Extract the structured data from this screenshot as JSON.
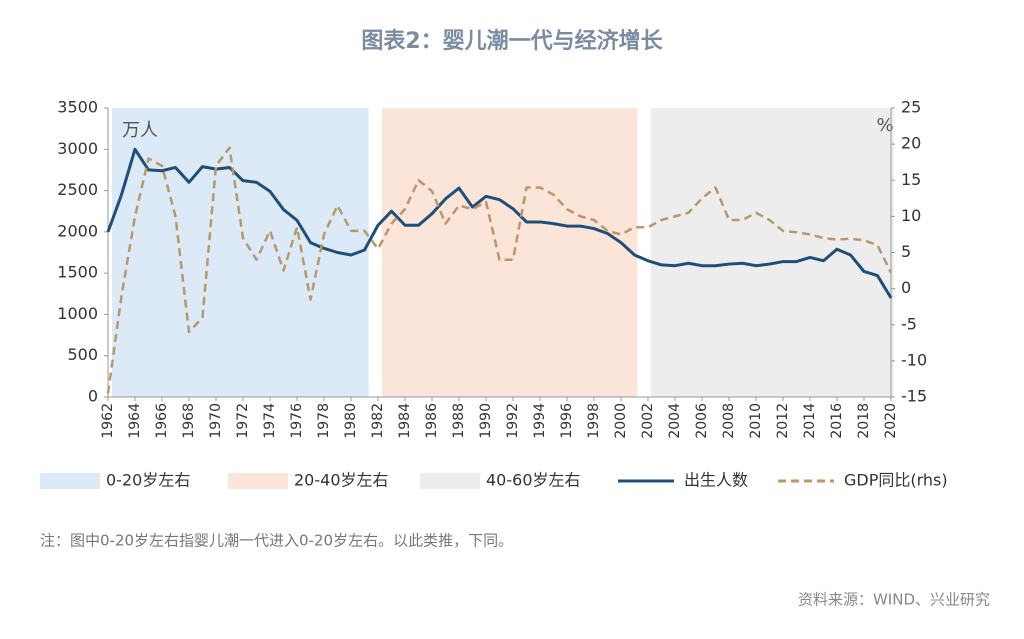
{
  "chart_data": {
    "type": "line",
    "title": "图表2：婴儿潮一代与经济增长",
    "y_unit_label": "万人",
    "y2_unit_label": "%",
    "x": [
      1962,
      1963,
      1964,
      1965,
      1966,
      1967,
      1968,
      1969,
      1970,
      1971,
      1972,
      1973,
      1974,
      1975,
      1976,
      1977,
      1978,
      1979,
      1980,
      1981,
      1982,
      1983,
      1984,
      1985,
      1986,
      1987,
      1988,
      1989,
      1990,
      1991,
      1992,
      1993,
      1994,
      1995,
      1996,
      1997,
      1998,
      1999,
      2000,
      2001,
      2002,
      2003,
      2004,
      2005,
      2006,
      2007,
      2008,
      2009,
      2010,
      2011,
      2012,
      2013,
      2014,
      2015,
      2016,
      2017,
      2018,
      2019,
      2020
    ],
    "xlim": [
      1962,
      2020
    ],
    "xticks": [
      1962,
      1964,
      1966,
      1968,
      1970,
      1972,
      1974,
      1976,
      1978,
      1980,
      1982,
      1984,
      1986,
      1988,
      1990,
      1992,
      1994,
      1996,
      1998,
      2000,
      2002,
      2004,
      2006,
      2008,
      2010,
      2012,
      2014,
      2016,
      2018,
      2020
    ],
    "ylim": [
      0,
      3500
    ],
    "yticks": [
      0,
      500,
      1000,
      1500,
      2000,
      2500,
      3000,
      3500
    ],
    "y2lim": [
      -15,
      25
    ],
    "y2ticks": [
      -15,
      -10,
      -5,
      0,
      5,
      10,
      15,
      20,
      25
    ],
    "bands": [
      {
        "name": "0-20岁左右",
        "color": "#dce9f6",
        "range": [
          1962.3,
          1981.3
        ]
      },
      {
        "name": "20-40岁左右",
        "color": "#fbe4d8",
        "range": [
          1982.3,
          2001.2
        ]
      },
      {
        "name": "40-60岁左右",
        "color": "#ededed",
        "range": [
          2002.2,
          2020.2
        ]
      }
    ],
    "series": [
      {
        "name": "出生人数",
        "color": "#1f4e79",
        "axis": "y",
        "values": [
          2000,
          2450,
          3000,
          2750,
          2740,
          2780,
          2600,
          2790,
          2760,
          2780,
          2620,
          2600,
          2490,
          2270,
          2140,
          1870,
          1800,
          1750,
          1720,
          1780,
          2080,
          2250,
          2080,
          2080,
          2220,
          2400,
          2530,
          2300,
          2430,
          2390,
          2280,
          2120,
          2120,
          2100,
          2070,
          2070,
          2040,
          1980,
          1870,
          1720,
          1650,
          1600,
          1590,
          1620,
          1590,
          1590,
          1610,
          1620,
          1590,
          1610,
          1640,
          1640,
          1690,
          1650,
          1790,
          1720,
          1520,
          1470,
          1200
        ]
      },
      {
        "name": "GDP同比(rhs)",
        "color": "#b8976a",
        "axis": "y2",
        "dashed": true,
        "values": [
          -14.5,
          -1,
          10,
          18,
          17,
          10,
          -6,
          -4,
          17,
          19.5,
          7,
          4,
          8,
          2.5,
          8.5,
          -1.5,
          7.5,
          11.5,
          8,
          8,
          5.5,
          9,
          11,
          15,
          13.5,
          9,
          11.5,
          11,
          12,
          4,
          4,
          14,
          14,
          13,
          11,
          10,
          9.5,
          8,
          7.5,
          8.5,
          8.5,
          9.5,
          10,
          10.5,
          12.5,
          14,
          9.5,
          9.5,
          10.5,
          9.5,
          8,
          7.8,
          7.5,
          7,
          6.8,
          6.9,
          6.7,
          6,
          2.2
        ]
      }
    ],
    "note": "注：图中0-20岁左右指婴儿潮一代进入0-20岁左右。以此类推，下同。",
    "source": "资料来源：WIND、兴业研究"
  }
}
